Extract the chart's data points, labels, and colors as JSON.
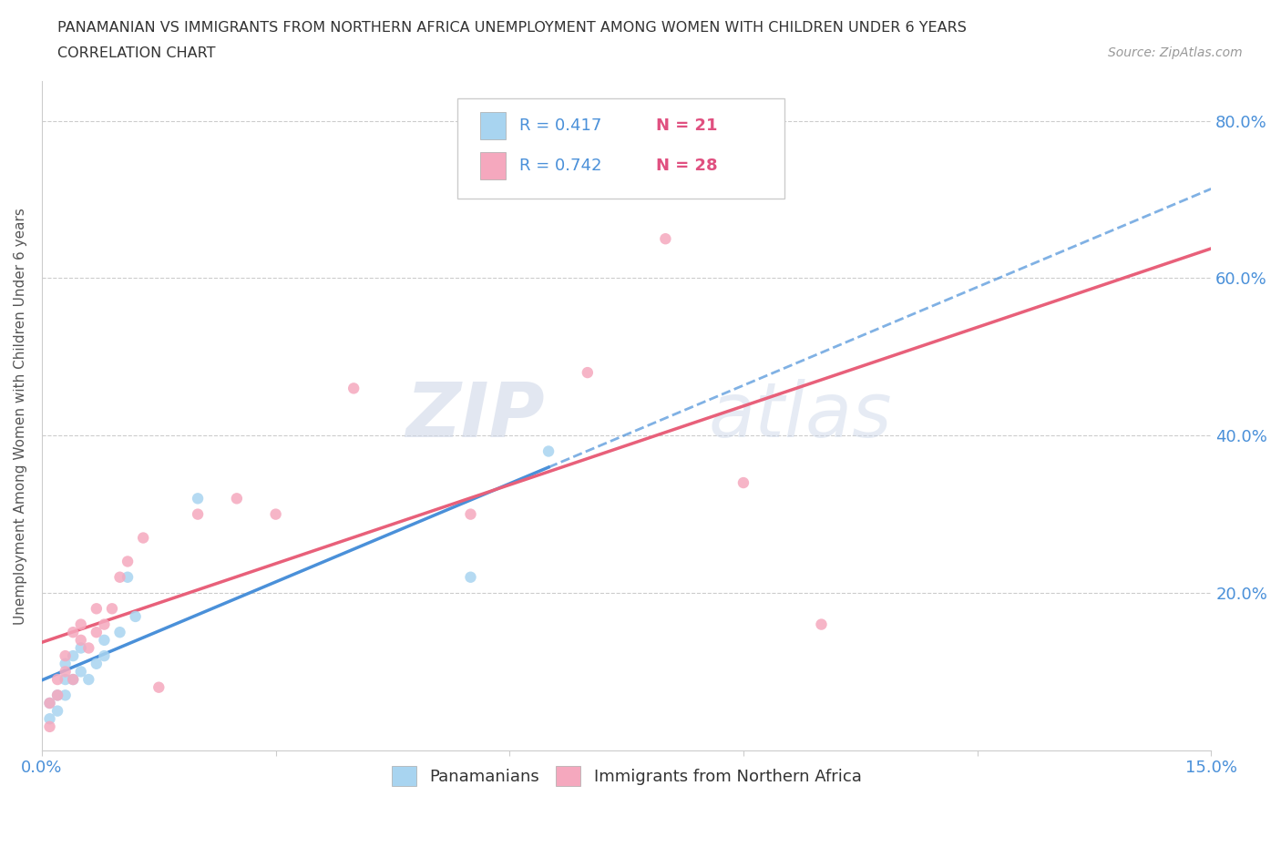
{
  "title_line1": "PANAMANIAN VS IMMIGRANTS FROM NORTHERN AFRICA UNEMPLOYMENT AMONG WOMEN WITH CHILDREN UNDER 6 YEARS",
  "title_line2": "CORRELATION CHART",
  "source": "Source: ZipAtlas.com",
  "ylabel": "Unemployment Among Women with Children Under 6 years",
  "xlim": [
    0.0,
    0.15
  ],
  "ylim": [
    0.0,
    0.85
  ],
  "yticks": [
    0.0,
    0.2,
    0.4,
    0.6,
    0.8
  ],
  "yticklabels": [
    "",
    "20.0%",
    "40.0%",
    "60.0%",
    "80.0%"
  ],
  "xticks": [
    0.0,
    0.03,
    0.06,
    0.09,
    0.12,
    0.15
  ],
  "xticklabels_show": [
    "0.0%",
    "",
    "",
    "",
    "",
    "15.0%"
  ],
  "color_blue": "#A8D4F0",
  "color_pink": "#F5A8BE",
  "color_blue_line": "#4A90D9",
  "color_pink_line": "#E8607A",
  "watermark": "ZIPatlas",
  "panamanian_x": [
    0.001,
    0.001,
    0.002,
    0.002,
    0.003,
    0.003,
    0.003,
    0.004,
    0.004,
    0.005,
    0.005,
    0.006,
    0.007,
    0.008,
    0.008,
    0.01,
    0.011,
    0.012,
    0.02,
    0.055,
    0.065
  ],
  "panamanian_y": [
    0.04,
    0.06,
    0.05,
    0.07,
    0.07,
    0.09,
    0.11,
    0.09,
    0.12,
    0.1,
    0.13,
    0.09,
    0.11,
    0.12,
    0.14,
    0.15,
    0.22,
    0.17,
    0.32,
    0.22,
    0.38
  ],
  "northern_africa_x": [
    0.001,
    0.001,
    0.002,
    0.002,
    0.003,
    0.003,
    0.004,
    0.004,
    0.005,
    0.005,
    0.006,
    0.007,
    0.007,
    0.008,
    0.009,
    0.01,
    0.011,
    0.013,
    0.015,
    0.02,
    0.025,
    0.03,
    0.04,
    0.055,
    0.07,
    0.08,
    0.09,
    0.1
  ],
  "northern_africa_y": [
    0.03,
    0.06,
    0.07,
    0.09,
    0.1,
    0.12,
    0.09,
    0.15,
    0.14,
    0.16,
    0.13,
    0.15,
    0.18,
    0.16,
    0.18,
    0.22,
    0.24,
    0.27,
    0.08,
    0.3,
    0.32,
    0.3,
    0.46,
    0.3,
    0.48,
    0.65,
    0.34,
    0.16
  ]
}
